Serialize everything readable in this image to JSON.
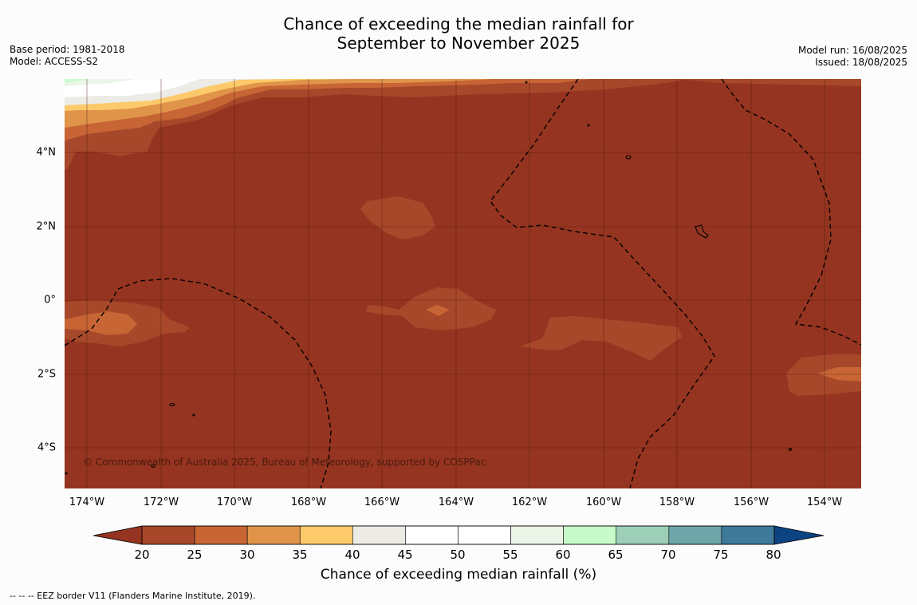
{
  "title": {
    "line1": "Chance of exceeding the median rainfall for",
    "line2": "September to November 2025"
  },
  "meta_left": {
    "base_period": "Base period: 1981-2018",
    "model": "Model: ACCESS-S2"
  },
  "meta_right": {
    "model_run": "Model run: 16/08/2025",
    "issued": "Issued: 18/08/2025"
  },
  "map": {
    "copyright": "© Commonwealth of Australia 2025, Bureau of Meteorology, supported by COSPPac",
    "lat_labels": [
      "4°N",
      "2°N",
      "0°",
      "2°S",
      "4°S"
    ],
    "lon_labels": [
      "174°W",
      "172°W",
      "170°W",
      "168°W",
      "166°W",
      "164°W",
      "162°W",
      "160°W",
      "158°W",
      "156°W",
      "154°W"
    ],
    "extent": {
      "lon_west": -174.6,
      "lon_east": -153.0,
      "lat_south": -5.2,
      "lat_north": 5.8
    },
    "background_category": "below 20%",
    "colors": {
      "below20": "#953420",
      "20to25": "#a8482a",
      "25to30": "#c76535",
      "30to35": "#e0944a",
      "35to40": "#fcca6a",
      "40to45": "#edebe6",
      "45to55": "#ffffff",
      "55to60": "#eaf5e8",
      "60to65": "#c8fbca",
      "65to70": "#9dcfb8",
      "70to75": "#6ea5a8",
      "75to80": "#3f7a9a",
      "above80": "#0c4383"
    }
  },
  "colorbar": {
    "ticks": [
      "20",
      "25",
      "30",
      "35",
      "40",
      "45",
      "50",
      "55",
      "60",
      "65",
      "70",
      "75",
      "80"
    ],
    "bin_colors": [
      "#a8482a",
      "#c76535",
      "#e0944a",
      "#fcca6a",
      "#edebe6",
      "#ffffff",
      "#ffffff",
      "#eaf5e8",
      "#c8fbca",
      "#9dcfb8",
      "#6ea5a8",
      "#3f7a9a"
    ],
    "low_extend_color": "#953420",
    "high_extend_color": "#0c4383",
    "label": "Chance of exceeding median rainfall (%)"
  },
  "footnote": "--  --  -- EEZ border V11 (Flanders Marine Institute, 2019)."
}
